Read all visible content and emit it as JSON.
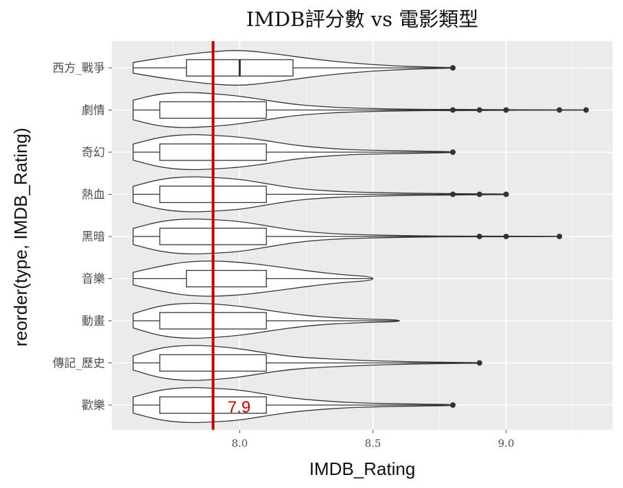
{
  "chart_data": {
    "type": "violin-box",
    "title": "IMDB評分數 vs 電影類型",
    "xlabel": "IMDB_Rating",
    "ylabel": "reorder(type, IMDB_Rating)",
    "xlim": [
      7.52,
      9.4
    ],
    "x_ticks": [
      8.0,
      8.5,
      9.0
    ],
    "x_tick_labels": [
      "8.0",
      "8.5",
      "9.0"
    ],
    "grid": true,
    "reference_line": {
      "value": 7.9,
      "label": "7.9",
      "color": "#c00000"
    },
    "categories": [
      "西方_戰爭",
      "劇情",
      "奇幻",
      "熱血",
      "黑暗",
      "音樂",
      "動畫",
      "傳記_歷史",
      "歡樂"
    ],
    "series": [
      {
        "category": "西方_戰爭",
        "min": 7.6,
        "q1": 7.8,
        "median": 8.0,
        "q3": 8.2,
        "whisker_high": 8.8,
        "outliers": [
          8.8
        ],
        "density": [
          [
            7.6,
            0.3
          ],
          [
            7.7,
            0.55
          ],
          [
            7.8,
            0.75
          ],
          [
            7.9,
            0.92
          ],
          [
            8.0,
            1.0
          ],
          [
            8.1,
            0.85
          ],
          [
            8.2,
            0.65
          ],
          [
            8.3,
            0.45
          ],
          [
            8.4,
            0.3
          ],
          [
            8.5,
            0.18
          ],
          [
            8.6,
            0.1
          ],
          [
            8.7,
            0.05
          ],
          [
            8.8,
            0.02
          ]
        ]
      },
      {
        "category": "劇情",
        "min": 7.6,
        "q1": 7.7,
        "median": 7.9,
        "q3": 8.1,
        "whisker_high": 8.7,
        "outliers": [
          8.8,
          8.9,
          9.0,
          9.2,
          9.3
        ],
        "density": [
          [
            7.6,
            0.55
          ],
          [
            7.7,
            0.92
          ],
          [
            7.8,
            1.0
          ],
          [
            7.9,
            0.92
          ],
          [
            8.0,
            0.78
          ],
          [
            8.1,
            0.55
          ],
          [
            8.2,
            0.32
          ],
          [
            8.3,
            0.2
          ],
          [
            8.4,
            0.12
          ],
          [
            8.5,
            0.08
          ],
          [
            8.6,
            0.05
          ],
          [
            8.7,
            0.03
          ],
          [
            8.8,
            0.04
          ],
          [
            8.9,
            0.03
          ],
          [
            9.0,
            0.02
          ],
          [
            9.1,
            0.01
          ],
          [
            9.2,
            0.01
          ],
          [
            9.3,
            0.005
          ]
        ]
      },
      {
        "category": "奇幻",
        "min": 7.6,
        "q1": 7.7,
        "median": 7.9,
        "q3": 8.1,
        "whisker_high": 8.8,
        "outliers": [
          8.8
        ],
        "density": [
          [
            7.6,
            0.45
          ],
          [
            7.7,
            0.85
          ],
          [
            7.8,
            1.0
          ],
          [
            7.9,
            0.95
          ],
          [
            8.0,
            0.85
          ],
          [
            8.1,
            0.65
          ],
          [
            8.2,
            0.4
          ],
          [
            8.3,
            0.25
          ],
          [
            8.4,
            0.15
          ],
          [
            8.5,
            0.1
          ],
          [
            8.6,
            0.08
          ],
          [
            8.7,
            0.05
          ],
          [
            8.8,
            0.03
          ]
        ]
      },
      {
        "category": "熱血",
        "min": 7.6,
        "q1": 7.7,
        "median": 7.9,
        "q3": 8.1,
        "whisker_high": 8.7,
        "outliers": [
          8.8,
          8.9,
          9.0
        ],
        "density": [
          [
            7.6,
            0.45
          ],
          [
            7.7,
            0.85
          ],
          [
            7.8,
            1.0
          ],
          [
            7.9,
            0.95
          ],
          [
            8.0,
            0.85
          ],
          [
            8.1,
            0.6
          ],
          [
            8.2,
            0.35
          ],
          [
            8.3,
            0.22
          ],
          [
            8.4,
            0.14
          ],
          [
            8.5,
            0.1
          ],
          [
            8.6,
            0.07
          ],
          [
            8.7,
            0.05
          ],
          [
            8.8,
            0.04
          ],
          [
            8.9,
            0.03
          ],
          [
            9.0,
            0.02
          ]
        ]
      },
      {
        "category": "黑暗",
        "min": 7.6,
        "q1": 7.7,
        "median": 7.9,
        "q3": 8.1,
        "whisker_high": 8.7,
        "outliers": [
          8.9,
          9.0,
          9.2
        ],
        "density": [
          [
            7.6,
            0.45
          ],
          [
            7.7,
            0.85
          ],
          [
            7.8,
            1.0
          ],
          [
            7.9,
            0.95
          ],
          [
            8.0,
            0.85
          ],
          [
            8.1,
            0.6
          ],
          [
            8.2,
            0.35
          ],
          [
            8.3,
            0.2
          ],
          [
            8.4,
            0.12
          ],
          [
            8.5,
            0.08
          ],
          [
            8.6,
            0.05
          ],
          [
            8.7,
            0.03
          ],
          [
            8.8,
            0.02
          ],
          [
            8.9,
            0.02
          ],
          [
            9.0,
            0.015
          ],
          [
            9.1,
            0.01
          ],
          [
            9.2,
            0.005
          ]
        ]
      },
      {
        "category": "音樂",
        "min": 7.6,
        "q1": 7.8,
        "median": 7.9,
        "q3": 8.1,
        "whisker_high": 8.5,
        "outliers": [],
        "density": [
          [
            7.6,
            0.35
          ],
          [
            7.7,
            0.7
          ],
          [
            7.8,
            0.95
          ],
          [
            7.9,
            1.0
          ],
          [
            8.0,
            0.92
          ],
          [
            8.1,
            0.75
          ],
          [
            8.2,
            0.55
          ],
          [
            8.3,
            0.35
          ],
          [
            8.4,
            0.2
          ],
          [
            8.5,
            0.1
          ]
        ]
      },
      {
        "category": "動畫",
        "min": 7.6,
        "q1": 7.7,
        "median": 7.9,
        "q3": 8.1,
        "whisker_high": 8.6,
        "outliers": [],
        "density": [
          [
            7.6,
            0.4
          ],
          [
            7.7,
            0.85
          ],
          [
            7.8,
            1.0
          ],
          [
            7.9,
            0.95
          ],
          [
            8.0,
            0.82
          ],
          [
            8.1,
            0.6
          ],
          [
            8.2,
            0.38
          ],
          [
            8.3,
            0.22
          ],
          [
            8.4,
            0.14
          ],
          [
            8.5,
            0.08
          ],
          [
            8.6,
            0.05
          ]
        ]
      },
      {
        "category": "傳記_歷史",
        "min": 7.6,
        "q1": 7.7,
        "median": 7.9,
        "q3": 8.1,
        "whisker_high": 8.9,
        "outliers": [
          8.9
        ],
        "density": [
          [
            7.6,
            0.4
          ],
          [
            7.7,
            0.85
          ],
          [
            7.8,
            1.0
          ],
          [
            7.9,
            0.95
          ],
          [
            8.0,
            0.8
          ],
          [
            8.1,
            0.55
          ],
          [
            8.2,
            0.35
          ],
          [
            8.3,
            0.25
          ],
          [
            8.4,
            0.18
          ],
          [
            8.5,
            0.12
          ],
          [
            8.6,
            0.08
          ],
          [
            8.7,
            0.05
          ],
          [
            8.8,
            0.03
          ],
          [
            8.9,
            0.02
          ]
        ]
      },
      {
        "category": "歡樂",
        "min": 7.6,
        "q1": 7.7,
        "median": 7.9,
        "q3": 8.1,
        "whisker_high": 8.8,
        "outliers": [
          8.8
        ],
        "density": [
          [
            7.6,
            0.45
          ],
          [
            7.7,
            0.85
          ],
          [
            7.8,
            1.0
          ],
          [
            7.9,
            0.95
          ],
          [
            8.0,
            0.85
          ],
          [
            8.1,
            0.6
          ],
          [
            8.2,
            0.38
          ],
          [
            8.3,
            0.25
          ],
          [
            8.4,
            0.15
          ],
          [
            8.5,
            0.1
          ],
          [
            8.6,
            0.07
          ],
          [
            8.7,
            0.05
          ],
          [
            8.8,
            0.03
          ]
        ]
      }
    ],
    "colors": {
      "panel": "#ebebeb",
      "grid_major": "#ffffff",
      "shape_stroke": "#333333",
      "point": "#333333",
      "reference": "#c00000"
    }
  }
}
